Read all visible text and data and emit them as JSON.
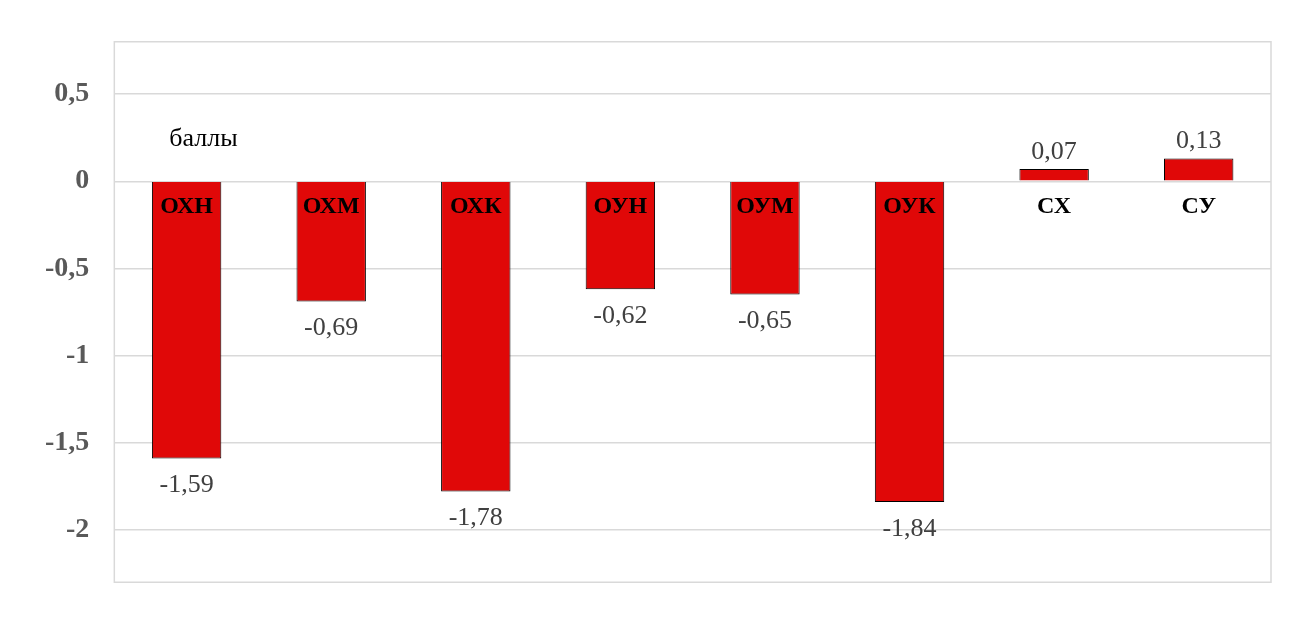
{
  "chart_data": {
    "type": "bar",
    "categories": [
      "ОХН",
      "ОХМ",
      "ОХК",
      "ОУН",
      "ОУМ",
      "ОУК",
      "СХ",
      "СУ"
    ],
    "values": [
      -1.59,
      -0.69,
      -1.78,
      -0.62,
      -0.65,
      -1.84,
      0.07,
      0.13
    ],
    "color": "#e00808",
    "ylim": [
      -2.3,
      0.8
    ],
    "yticks": [
      {
        "value": -2,
        "label": "-2"
      },
      {
        "value": -1.5,
        "label": "-1,5"
      },
      {
        "value": -1,
        "label": "-1"
      },
      {
        "value": -0.5,
        "label": "-0,5"
      },
      {
        "value": 0,
        "label": "0"
      },
      {
        "value": 0.5,
        "label": "0,5"
      }
    ],
    "grid": "y",
    "value_labels": [
      "-1,59",
      "-0,69",
      "-1,78",
      "-0,62",
      "-0,65",
      "-1,84",
      "0,07",
      "0,13"
    ],
    "annotations": [
      "баллы"
    ]
  }
}
